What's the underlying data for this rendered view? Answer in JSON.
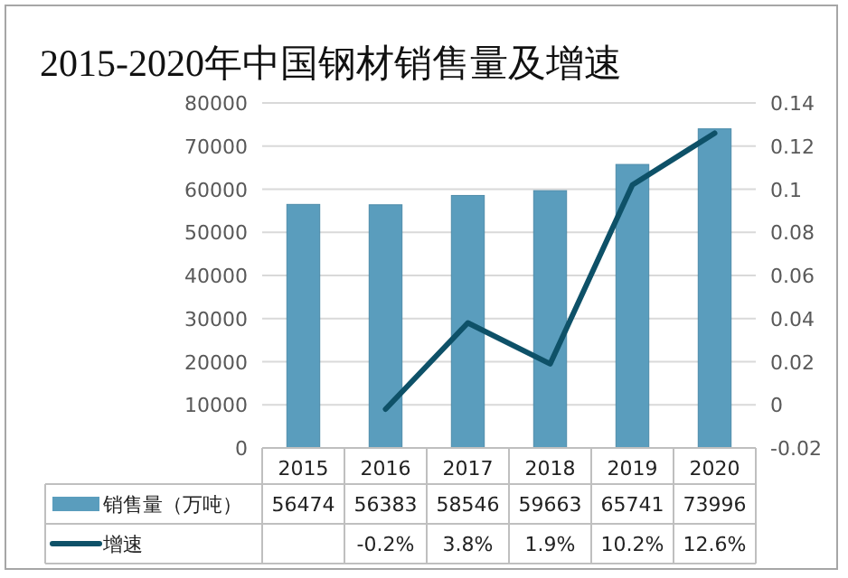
{
  "chart_data": {
    "type": "bar",
    "title": "2015-2020年中国钢材销售量及增速",
    "categories": [
      "2015",
      "2016",
      "2017",
      "2018",
      "2019",
      "2020"
    ],
    "series": [
      {
        "name": "销售量（万吨）",
        "color": "#5a9dbd",
        "values": [
          56474,
          56383,
          58546,
          59663,
          65741,
          73996
        ],
        "value_labels": [
          "56474",
          "56383",
          "58546",
          "59663",
          "65741",
          "73996"
        ]
      },
      {
        "name": "增速",
        "type": "line",
        "axis": "y2",
        "color": "#0e5168",
        "values": [
          null,
          -0.002,
          0.038,
          0.019,
          0.102,
          0.126
        ],
        "value_labels": [
          null,
          "-0.2%",
          "3.8%",
          "1.9%",
          "10.2%",
          "12.6%"
        ]
      }
    ],
    "ylim": [
      0,
      80000
    ],
    "yticks": [
      0,
      10000,
      20000,
      30000,
      40000,
      50000,
      60000,
      70000,
      80000
    ],
    "y2lim": [
      -0.02,
      0.14
    ],
    "y2ticks": [
      -0.02,
      0,
      0.02,
      0.04,
      0.06,
      0.08,
      0.1,
      0.12,
      0.14
    ],
    "grid": "y",
    "legend": "bottom",
    "marker": "none",
    "line_style": "solid"
  }
}
